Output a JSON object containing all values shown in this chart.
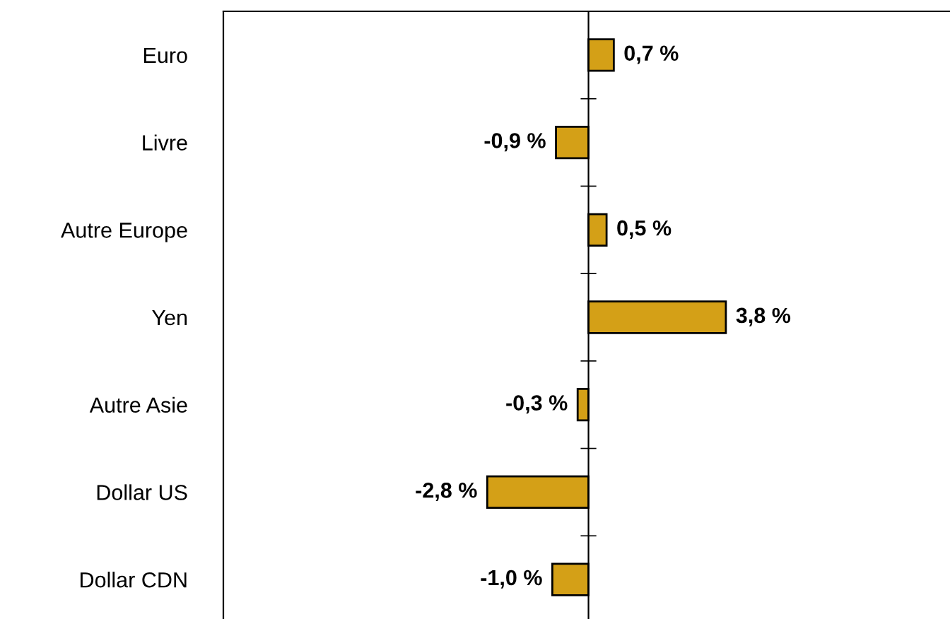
{
  "chart_data": {
    "type": "bar",
    "orientation": "horizontal",
    "categories": [
      "Euro",
      "Livre",
      "Autre Europe",
      "Yen",
      "Autre Asie",
      "Dollar US",
      "Dollar CDN"
    ],
    "values": [
      0.7,
      -0.9,
      0.5,
      3.8,
      -0.3,
      -2.8,
      -1.0
    ],
    "value_labels": [
      "0,7 %",
      "-0,9 %",
      "0,5 %",
      "3,8 %",
      "-0,3 %",
      "-2,8 %",
      "-1,0 %"
    ],
    "color": "#d4a017",
    "xlim": [
      -10.1,
      10
    ],
    "legend": false
  }
}
